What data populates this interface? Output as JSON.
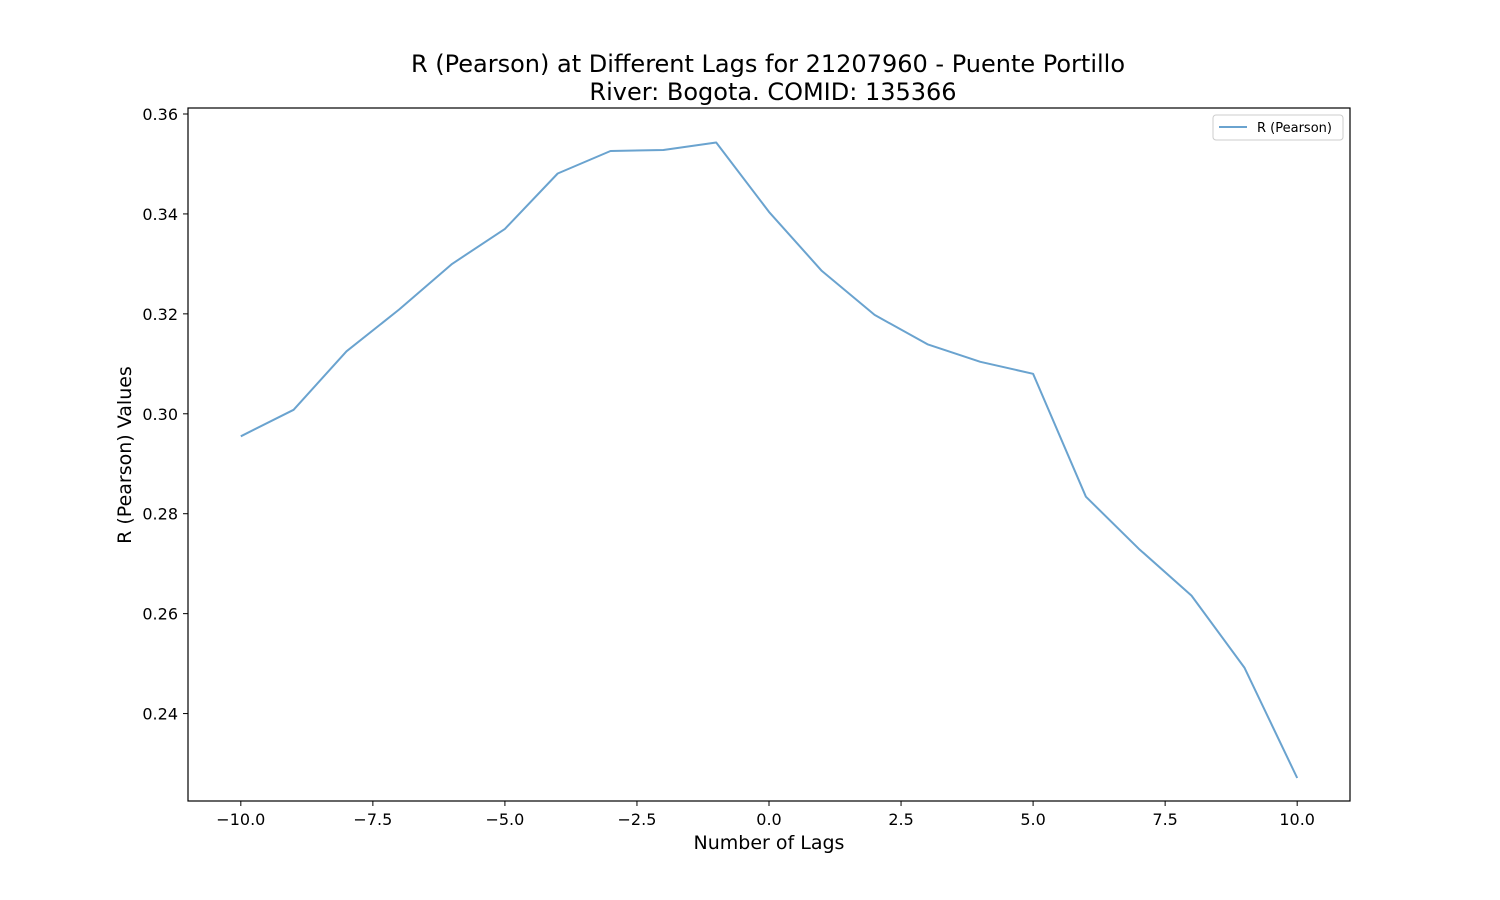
{
  "chart_data": {
    "type": "line",
    "title": "R (Pearson) at Different Lags for 21207960 - Puente Portillo",
    "subtitle": "River: Bogota. COMID: 135366",
    "xlabel": "Number of Lags",
    "ylabel": "R (Pearson) Values",
    "xlim": [
      -11,
      11
    ],
    "ylim": [
      0.2225,
      0.3612
    ],
    "xticks": [
      -10.0,
      -7.5,
      -5.0,
      -2.5,
      0.0,
      2.5,
      5.0,
      7.5,
      10.0
    ],
    "xtick_labels": [
      "−10.0",
      "−7.5",
      "−5.0",
      "−2.5",
      "0.0",
      "2.5",
      "5.0",
      "7.5",
      "10.0"
    ],
    "yticks": [
      0.24,
      0.26,
      0.28,
      0.3,
      0.32,
      0.34,
      0.36
    ],
    "ytick_labels": [
      "0.24",
      "0.26",
      "0.28",
      "0.30",
      "0.32",
      "0.34",
      "0.36"
    ],
    "grid": false,
    "legend_position": "top-right",
    "series": [
      {
        "name": "R (Pearson)",
        "color": "#6aa3cf",
        "x": [
          -10,
          -9,
          -8,
          -7,
          -6,
          -5,
          -4,
          -3,
          -2,
          -1,
          0,
          1,
          2,
          3,
          4,
          5,
          6,
          7,
          8,
          9,
          10
        ],
        "y": [
          0.2955,
          0.3008,
          0.3125,
          0.3209,
          0.33,
          0.337,
          0.3481,
          0.3526,
          0.3528,
          0.3543,
          0.3404,
          0.3286,
          0.3198,
          0.3139,
          0.3104,
          0.308,
          0.2834,
          0.273,
          0.2636,
          0.2492,
          0.2271
        ]
      }
    ]
  }
}
